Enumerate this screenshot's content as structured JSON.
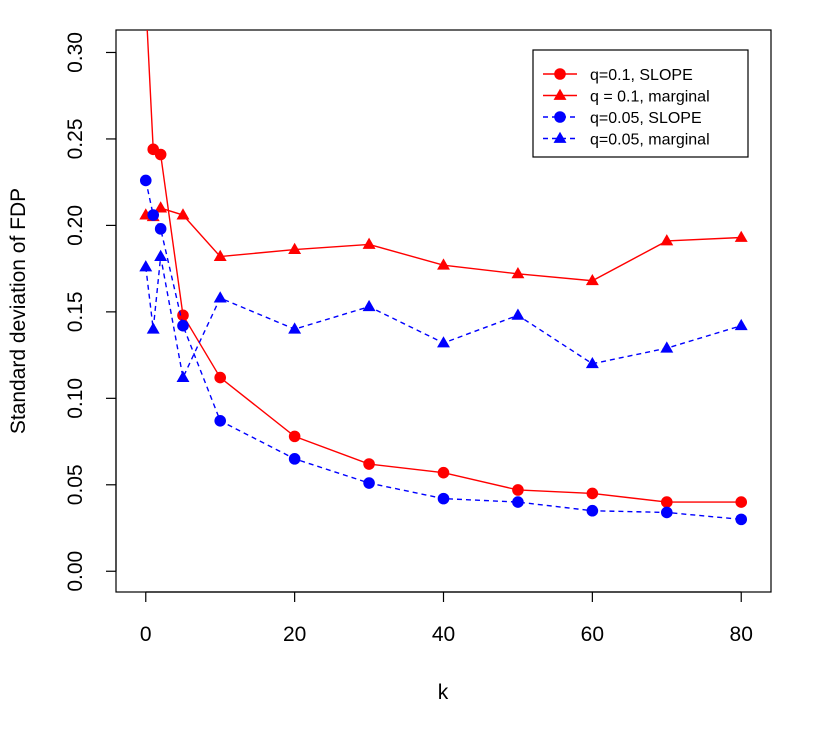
{
  "chart_data": {
    "type": "line",
    "title": "",
    "xlabel": "k",
    "ylabel": "Standard deviation of FDP",
    "xlim": [
      -4,
      84
    ],
    "ylim": [
      -0.012,
      0.313
    ],
    "xticks": [
      0,
      20,
      40,
      60,
      80
    ],
    "yticks": [
      0.0,
      0.05,
      0.1,
      0.15,
      0.2,
      0.25,
      0.3
    ],
    "ytick_labels": [
      "0.00",
      "0.05",
      "0.10",
      "0.15",
      "0.20",
      "0.25",
      "0.30"
    ],
    "grid": false,
    "legend_position": "top-right",
    "series": [
      {
        "name": "q=0.1, SLOPE",
        "color": "#ff0000",
        "line": "solid",
        "marker": "circle",
        "x": [
          0,
          1,
          2,
          5,
          10,
          20,
          30,
          40,
          50,
          60,
          70,
          80
        ],
        "y": [
          0.33,
          0.244,
          0.241,
          0.148,
          0.112,
          0.078,
          0.062,
          0.057,
          0.047,
          0.045,
          0.04,
          0.04
        ]
      },
      {
        "name": "q = 0.1, marginal",
        "color": "#ff0000",
        "line": "solid",
        "marker": "triangle",
        "x": [
          0,
          1,
          2,
          5,
          10,
          20,
          30,
          40,
          50,
          60,
          70,
          80
        ],
        "y": [
          0.206,
          0.205,
          0.21,
          0.206,
          0.182,
          0.186,
          0.189,
          0.177,
          0.172,
          0.168,
          0.191,
          0.193
        ]
      },
      {
        "name": "q=0.05, SLOPE",
        "color": "#0000ff",
        "line": "dashed",
        "marker": "circle",
        "x": [
          0,
          1,
          2,
          5,
          10,
          20,
          30,
          40,
          50,
          60,
          70,
          80
        ],
        "y": [
          0.226,
          0.206,
          0.198,
          0.142,
          0.087,
          0.065,
          0.051,
          0.042,
          0.04,
          0.035,
          0.034,
          0.03
        ]
      },
      {
        "name": "q=0.05, marginal",
        "color": "#0000ff",
        "line": "dashed",
        "marker": "triangle",
        "x": [
          0,
          1,
          2,
          5,
          10,
          20,
          30,
          40,
          50,
          60,
          70,
          80
        ],
        "y": [
          0.176,
          0.14,
          0.182,
          0.112,
          0.158,
          0.14,
          0.153,
          0.132,
          0.148,
          0.12,
          0.129,
          0.142
        ]
      }
    ]
  }
}
